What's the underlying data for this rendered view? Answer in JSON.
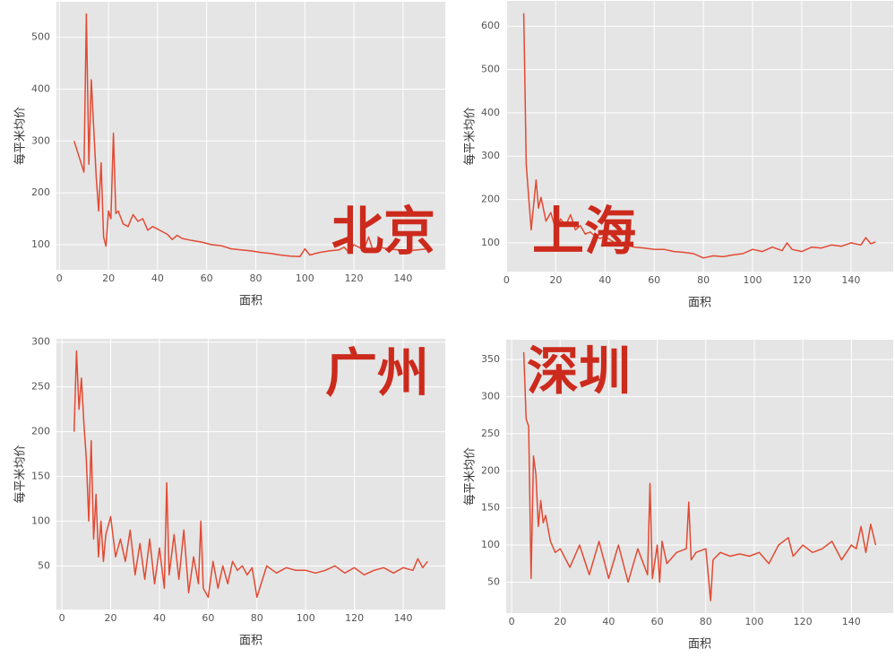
{
  "chart_data": [
    {
      "type": "line",
      "annotation": "北京",
      "xlabel": "面积",
      "ylabel": "每平米均价",
      "grid": true,
      "color": "#e24a33",
      "x": [
        6,
        10,
        11,
        12,
        13,
        15,
        16,
        17,
        18,
        19,
        20,
        21,
        22,
        23,
        24,
        26,
        28,
        30,
        32,
        34,
        36,
        38,
        40,
        42,
        44,
        46,
        48,
        50,
        54,
        58,
        62,
        66,
        70,
        74,
        78,
        82,
        86,
        90,
        94,
        98,
        100,
        102,
        106,
        110,
        114,
        116,
        118,
        120,
        124,
        126,
        128,
        130,
        134,
        138,
        142,
        146,
        150
      ],
      "values": [
        300,
        240,
        545,
        255,
        418,
        230,
        165,
        258,
        115,
        97,
        165,
        150,
        315,
        160,
        165,
        140,
        135,
        158,
        145,
        150,
        128,
        135,
        130,
        125,
        120,
        110,
        118,
        112,
        108,
        105,
        100,
        98,
        92,
        90,
        88,
        85,
        83,
        80,
        78,
        77,
        92,
        80,
        85,
        88,
        90,
        95,
        85,
        100,
        90,
        115,
        85,
        95,
        92,
        90,
        88,
        90,
        92
      ],
      "xlim": [
        -1.2,
        157.2
      ],
      "xticks": [
        0,
        20,
        40,
        60,
        80,
        100,
        120,
        140
      ],
      "ylim": [
        51.5,
        568.5
      ],
      "yticks": [
        100,
        200,
        300,
        400,
        500
      ]
    },
    {
      "type": "line",
      "annotation": "上海",
      "xlabel": "面积",
      "ylabel": "每平米均价",
      "grid": true,
      "color": "#e24a33",
      "x": [
        7,
        8,
        10,
        12,
        13,
        14,
        16,
        18,
        20,
        22,
        24,
        26,
        28,
        30,
        32,
        34,
        36,
        38,
        40,
        44,
        48,
        52,
        56,
        60,
        64,
        68,
        72,
        76,
        80,
        84,
        88,
        92,
        96,
        100,
        104,
        108,
        112,
        114,
        116,
        120,
        124,
        128,
        132,
        136,
        140,
        144,
        146,
        148,
        150
      ],
      "values": [
        630,
        280,
        130,
        245,
        180,
        205,
        150,
        170,
        130,
        155,
        140,
        165,
        130,
        140,
        120,
        125,
        115,
        110,
        115,
        100,
        95,
        90,
        88,
        85,
        85,
        80,
        78,
        75,
        65,
        70,
        68,
        72,
        75,
        85,
        80,
        90,
        82,
        100,
        85,
        80,
        90,
        88,
        95,
        92,
        100,
        95,
        112,
        98,
        102
      ],
      "xlim": [
        -0.15,
        157.15
      ],
      "xticks": [
        0,
        20,
        40,
        60,
        80,
        100,
        120,
        140
      ],
      "ylim": [
        33.6,
        658.4
      ],
      "yticks": [
        100,
        200,
        300,
        400,
        500,
        600
      ]
    },
    {
      "type": "line",
      "annotation": "广州",
      "xlabel": "面积",
      "ylabel": "每平米均价",
      "grid": true,
      "color": "#e24a33",
      "x": [
        5,
        6,
        7,
        8,
        9,
        10,
        11,
        12,
        13,
        14,
        15,
        16,
        17,
        18,
        20,
        22,
        24,
        26,
        28,
        30,
        32,
        34,
        36,
        38,
        40,
        42,
        43,
        44,
        46,
        48,
        50,
        52,
        54,
        56,
        57,
        58,
        60,
        62,
        64,
        66,
        68,
        70,
        72,
        74,
        76,
        78,
        80,
        84,
        88,
        92,
        96,
        100,
        104,
        108,
        112,
        116,
        120,
        124,
        128,
        132,
        136,
        140,
        144,
        146,
        148,
        150
      ],
      "values": [
        200,
        290,
        225,
        260,
        210,
        170,
        100,
        190,
        80,
        130,
        60,
        100,
        55,
        85,
        105,
        60,
        80,
        55,
        90,
        40,
        75,
        35,
        80,
        30,
        70,
        25,
        143,
        40,
        85,
        35,
        90,
        20,
        60,
        30,
        100,
        25,
        15,
        55,
        25,
        50,
        30,
        55,
        45,
        50,
        40,
        48,
        15,
        50,
        42,
        48,
        45,
        45,
        42,
        45,
        50,
        42,
        48,
        40,
        45,
        48,
        42,
        48,
        45,
        58,
        48,
        55
      ],
      "xlim": [
        -2.25,
        157.25
      ],
      "xticks": [
        0,
        20,
        40,
        60,
        80,
        100,
        120,
        140
      ],
      "ylim": [
        1.25,
        303.75
      ],
      "yticks": [
        50,
        100,
        150,
        200,
        250,
        300
      ]
    },
    {
      "type": "line",
      "annotation": "深圳",
      "xlabel": "面积",
      "ylabel": "每平米均价",
      "grid": true,
      "color": "#e24a33",
      "x": [
        5,
        6,
        7,
        8,
        9,
        10,
        11,
        12,
        13,
        14,
        16,
        18,
        20,
        24,
        28,
        32,
        36,
        40,
        44,
        48,
        52,
        56,
        57,
        58,
        60,
        61,
        62,
        64,
        68,
        72,
        73,
        74,
        76,
        80,
        82,
        83,
        86,
        90,
        94,
        98,
        102,
        106,
        110,
        114,
        116,
        120,
        124,
        128,
        132,
        136,
        140,
        142,
        144,
        146,
        148,
        150
      ],
      "values": [
        360,
        270,
        260,
        55,
        220,
        195,
        125,
        160,
        130,
        140,
        105,
        90,
        95,
        70,
        100,
        60,
        105,
        55,
        100,
        50,
        95,
        60,
        183,
        55,
        100,
        50,
        105,
        75,
        90,
        95,
        158,
        80,
        90,
        95,
        25,
        80,
        90,
        85,
        88,
        85,
        90,
        75,
        100,
        110,
        85,
        100,
        90,
        95,
        105,
        80,
        100,
        95,
        125,
        90,
        128,
        100
      ],
      "xlim": [
        -2.25,
        157.25
      ],
      "xticks": [
        0,
        20,
        40,
        60,
        80,
        100,
        120,
        140
      ],
      "ylim": [
        8.25,
        376.75
      ],
      "yticks": [
        50,
        100,
        150,
        200,
        250,
        300,
        350
      ]
    }
  ]
}
